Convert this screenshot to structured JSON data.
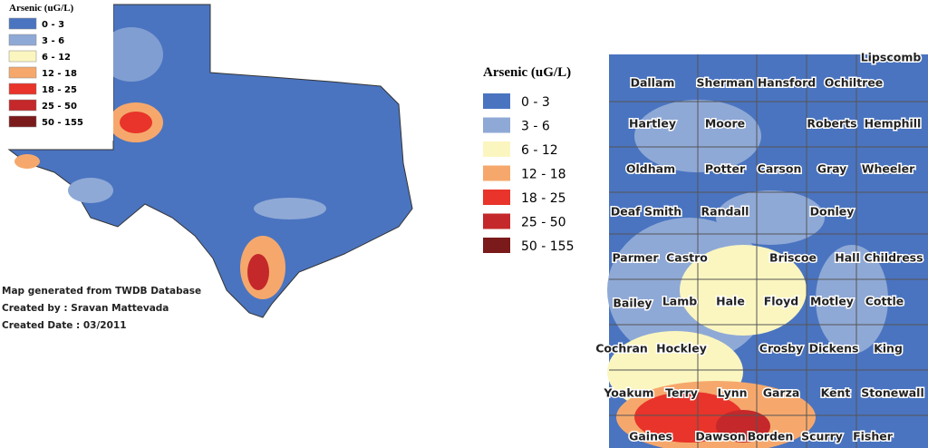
{
  "left_map": {
    "legend": {
      "title": "Arsenic (uG/L)",
      "items": [
        {
          "label": "0 - 3",
          "color": "#4a74c0"
        },
        {
          "label": "3 - 6",
          "color": "#8fa9d6"
        },
        {
          "label": "6 - 12",
          "color": "#fbf6c0"
        },
        {
          "label": "12 - 18",
          "color": "#f6a86c"
        },
        {
          "label": "18 - 25",
          "color": "#e8342a"
        },
        {
          "label": "25 - 50",
          "color": "#c4282a"
        },
        {
          "label": "50 - 155",
          "color": "#7a1a1a"
        }
      ]
    },
    "credits": [
      "Map generated from TWDB Database",
      "Created by : Sravan Mattevada",
      "Created Date : 03/2011"
    ]
  },
  "right_map": {
    "legend": {
      "title": "Arsenic (uG/L)",
      "items": [
        {
          "label": "0 - 3",
          "color": "#4a74c0"
        },
        {
          "label": "3 - 6",
          "color": "#8fa9d6"
        },
        {
          "label": "6 - 12",
          "color": "#fbf6c0"
        },
        {
          "label": "12 - 18",
          "color": "#f6a86c"
        },
        {
          "label": "18 - 25",
          "color": "#e8342a"
        },
        {
          "label": "25 - 50",
          "color": "#c4282a"
        },
        {
          "label": "50 - 155",
          "color": "#7a1a1a"
        }
      ]
    },
    "counties": [
      "Lipscomb",
      "Dallam",
      "Sherman",
      "Hansford",
      "Ochiltree",
      "Hartley",
      "Moore",
      "Roberts",
      "Hemphill",
      "Oldham",
      "Potter",
      "Carson",
      "Gray",
      "Wheeler",
      "Deaf Smith",
      "Randall",
      "Donley",
      "Parmer",
      "Castro",
      "Briscoe",
      "Hall",
      "Childress",
      "Bailey",
      "Lamb",
      "Hale",
      "Floyd",
      "Motley",
      "Cottle",
      "Cochran",
      "Hockley",
      "Crosby",
      "Dickens",
      "King",
      "Yoakum",
      "Terry",
      "Lynn",
      "Garza",
      "Kent",
      "Stonewall",
      "Gaines",
      "Dawson",
      "Borden",
      "Scurry",
      "Fisher"
    ]
  }
}
